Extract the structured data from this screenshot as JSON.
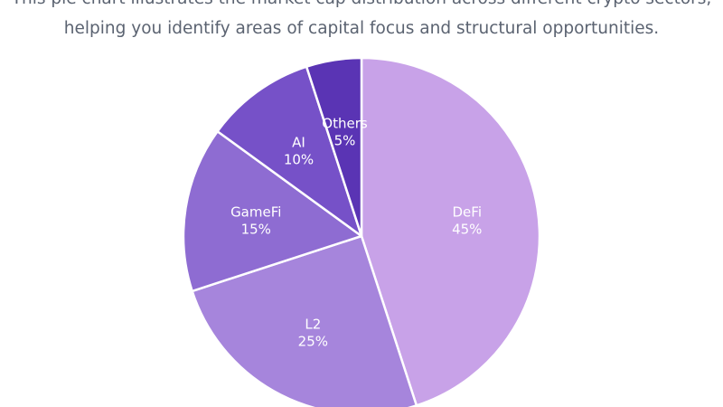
{
  "description": "This pie chart illustrates the market cap distribution across different crypto sectors, helping you identify areas of capital focus and structural opportunities.",
  "chart_data": {
    "type": "pie",
    "slices": [
      {
        "label": "DeFi",
        "value": 45,
        "value_label": "45%",
        "color": "#c8a2e8"
      },
      {
        "label": "L2",
        "value": 25,
        "value_label": "25%",
        "color": "#a685dc"
      },
      {
        "label": "GameFi",
        "value": 15,
        "value_label": "15%",
        "color": "#8e6cd2"
      },
      {
        "label": "AI",
        "value": 10,
        "value_label": "10%",
        "color": "#7651c8"
      },
      {
        "label": "Others",
        "value": 5,
        "value_label": "5%",
        "color": "#5a34b4"
      }
    ]
  }
}
